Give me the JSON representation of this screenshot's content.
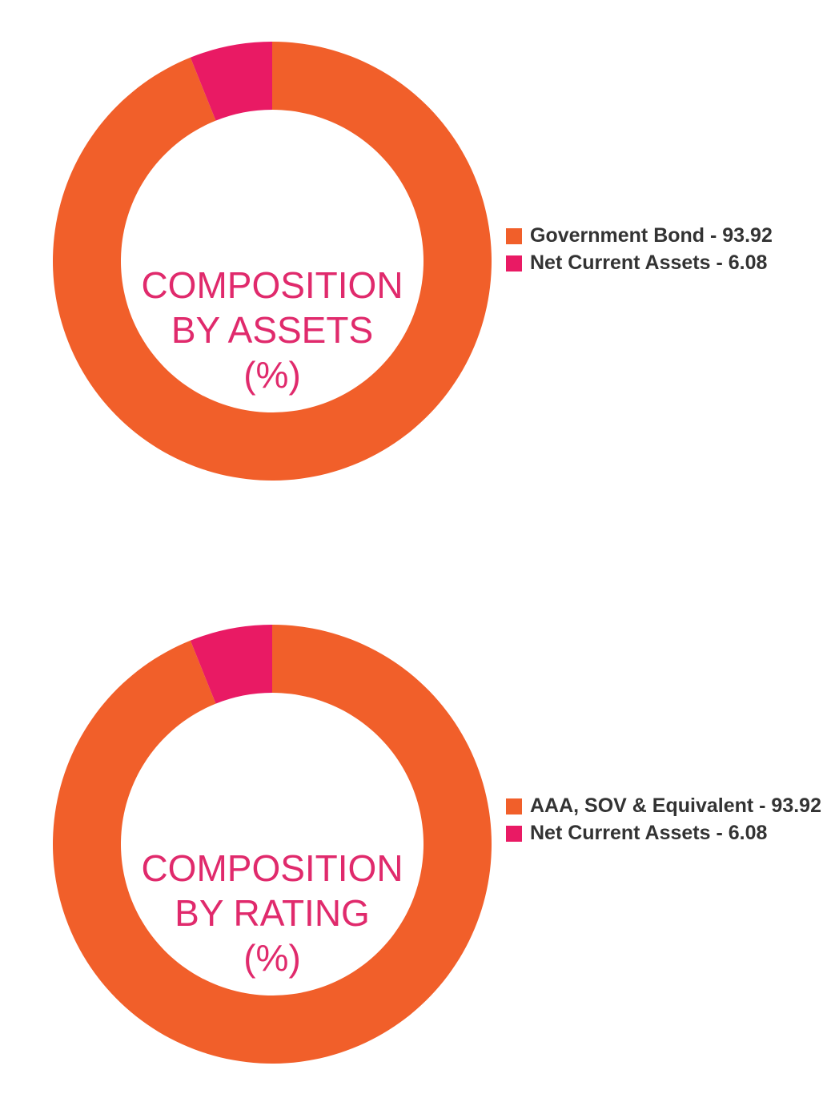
{
  "chart_data": [
    {
      "type": "pie",
      "variant": "donut",
      "title_lines": [
        "COMPOSITION",
        "BY ASSETS",
        "(%)"
      ],
      "categories": [
        "Government Bond - 93.92",
        "Net Current Assets - 6.08"
      ],
      "values": [
        93.92,
        6.08
      ],
      "colors": [
        "#f15f2a",
        "#e91a64"
      ],
      "legend_position": "right"
    },
    {
      "type": "pie",
      "variant": "donut",
      "title_lines": [
        "COMPOSITION",
        "BY RATING",
        "(%)"
      ],
      "categories": [
        "AAA, SOV & Equivalent - 93.92",
        "Net Current Assets - 6.08"
      ],
      "values": [
        93.92,
        6.08
      ],
      "colors": [
        "#f15f2a",
        "#e91a64"
      ],
      "legend_position": "right"
    }
  ]
}
